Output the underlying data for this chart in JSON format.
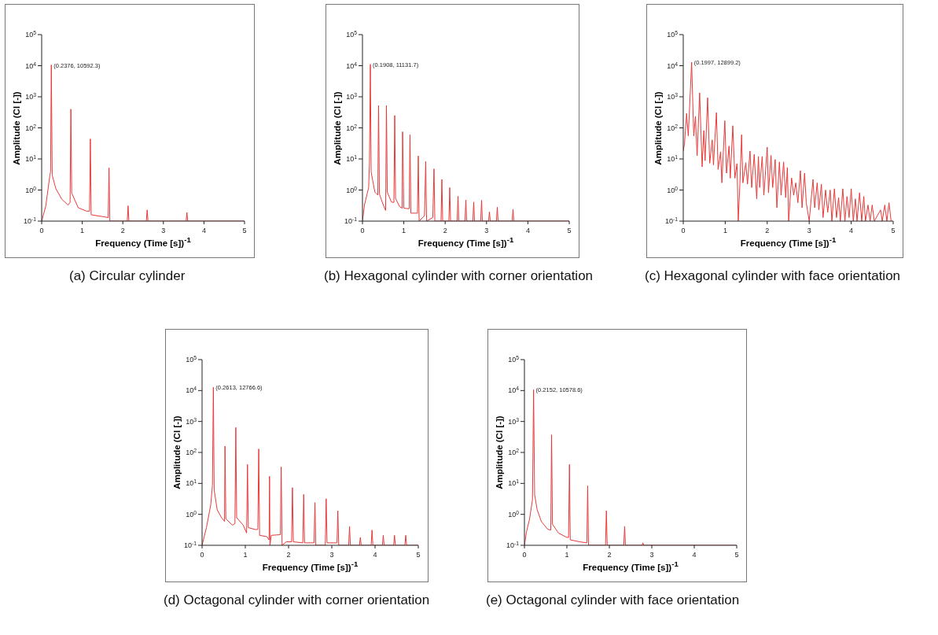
{
  "chart_data": [
    {
      "type": "line",
      "title": "(a) Circular cylinder",
      "xlabel": "Frequency (Time [s])$^{-1}$",
      "ylabel": "Amplitude (Cl [-])",
      "log": "y",
      "marker": "none",
      "line_style": "solid",
      "color": "#e63a3a",
      "xlim": [
        0,
        5
      ],
      "xticks": [
        0,
        1,
        2,
        3,
        4,
        5
      ],
      "ylim": [
        0.1,
        100000
      ],
      "yticks": [
        {
          "value": 0.1,
          "label": "10$^{-1}$"
        },
        {
          "value": 1,
          "label": "10$^{0}$"
        },
        {
          "value": 10,
          "label": "10$^{1}$"
        },
        {
          "value": 100,
          "label": "10$^{2}$"
        },
        {
          "value": 1000,
          "label": "10$^{3}$"
        },
        {
          "value": 10000,
          "label": "10$^{4}$"
        },
        {
          "value": 100000,
          "label": "10$^{5}$"
        }
      ],
      "annotations": [
        {
          "text": "(0.2376, 10592.3)",
          "x": 0.2376,
          "y": 10592.3
        }
      ],
      "x": [
        0,
        0.1,
        0.2,
        0.22,
        0.2376,
        0.26,
        0.35,
        0.5,
        0.65,
        0.7,
        0.72,
        0.74,
        0.9,
        1.1,
        1.18,
        1.2,
        1.22,
        1.5,
        1.64,
        1.66,
        1.68,
        2.11,
        2.13,
        2.15,
        2.58,
        2.6,
        2.62,
        3.56,
        3.58,
        3.6,
        5
      ],
      "values": [
        0.1,
        0.3,
        2.8,
        4,
        10592.3,
        3,
        1.1,
        0.5,
        0.33,
        0.4,
        400,
        0.8,
        0.27,
        0.21,
        0.21,
        44,
        0.16,
        0.14,
        0.13,
        5.2,
        0.1,
        0.1,
        0.31,
        0.1,
        0.1,
        0.23,
        0.1,
        0.1,
        0.19,
        0.1,
        0.1
      ]
    },
    {
      "type": "line",
      "title": "(b) Hexagonal cylinder with corner orientation",
      "xlabel": "Frequency (Time [s])$^{-1}$",
      "ylabel": "Amplitude (Cl [-])",
      "log": "y",
      "marker": "none",
      "line_style": "solid",
      "color": "#e63a3a",
      "xlim": [
        0,
        5
      ],
      "xticks": [
        0,
        1,
        2,
        3,
        4,
        5
      ],
      "ylim": [
        0.1,
        100000
      ],
      "yticks": [
        {
          "value": 0.1,
          "label": "10$^{-1}$"
        },
        {
          "value": 1,
          "label": "10$^{0}$"
        },
        {
          "value": 10,
          "label": "10$^{1}$"
        },
        {
          "value": 100,
          "label": "10$^{2}$"
        },
        {
          "value": 1000,
          "label": "10$^{3}$"
        },
        {
          "value": 10000,
          "label": "10$^{4}$"
        },
        {
          "value": 100000,
          "label": "10$^{5}$"
        }
      ],
      "annotations": [
        {
          "text": "(0.1908, 11131.7)",
          "x": 0.1908,
          "y": 11131.7
        }
      ],
      "x": [
        0,
        0.05,
        0.15,
        0.17,
        0.1908,
        0.21,
        0.3,
        0.37,
        0.39,
        0.41,
        0.5,
        0.56,
        0.58,
        0.6,
        0.7,
        0.76,
        0.78,
        0.8,
        0.9,
        0.96,
        0.97,
        1.0,
        1.13,
        1.15,
        1.17,
        1.33,
        1.35,
        1.37,
        1.5,
        1.53,
        1.55,
        1.7,
        1.73,
        1.75,
        1.9,
        1.92,
        1.94,
        2.09,
        2.11,
        2.13,
        2.29,
        2.31,
        2.33,
        2.48,
        2.5,
        2.52,
        2.67,
        2.69,
        2.71,
        2.86,
        2.88,
        2.9,
        3.05,
        3.07,
        3.09,
        3.24,
        3.26,
        3.28,
        3.62,
        3.64,
        3.66,
        5
      ],
      "values": [
        0.1,
        0.34,
        1.2,
        8,
        11131.7,
        3.8,
        0.86,
        0.69,
        525,
        0.74,
        0.34,
        0.22,
        525,
        0.86,
        0.41,
        0.4,
        250,
        0.54,
        0.29,
        0.26,
        75,
        0.26,
        0.25,
        60,
        0.18,
        0.18,
        12.5,
        0.1,
        0.15,
        8.3,
        0.1,
        0.13,
        4.8,
        0.1,
        0.1,
        2.2,
        0.1,
        0.1,
        1.2,
        0.1,
        0.1,
        0.63,
        0.1,
        0.1,
        0.48,
        0.1,
        0.1,
        0.41,
        0.1,
        0.1,
        0.47,
        0.1,
        0.1,
        0.2,
        0.1,
        0.1,
        0.28,
        0.1,
        0.1,
        0.24,
        0.1,
        0.1
      ]
    },
    {
      "type": "line",
      "title": "(c) Hexagonal cylinder with face orientation",
      "xlabel": "Frequency (Time [s])$^{-1}$",
      "ylabel": "Amplitude (Cl [-])",
      "log": "y",
      "marker": "none",
      "line_style": "solid",
      "color": "#e63a3a",
      "xlim": [
        0,
        5
      ],
      "xticks": [
        0,
        1,
        2,
        3,
        4,
        5
      ],
      "ylim": [
        0.1,
        100000
      ],
      "yticks": [
        {
          "value": 0.1,
          "label": "10$^{-1}$"
        },
        {
          "value": 1,
          "label": "10$^{0}$"
        },
        {
          "value": 10,
          "label": "10$^{1}$"
        },
        {
          "value": 100,
          "label": "10$^{2}$"
        },
        {
          "value": 1000,
          "label": "10$^{3}$"
        },
        {
          "value": 10000,
          "label": "10$^{4}$"
        },
        {
          "value": 100000,
          "label": "10$^{5}$"
        }
      ],
      "annotations": [
        {
          "text": "(0.1997, 12899.2)",
          "x": 0.1997,
          "y": 12899.2
        }
      ],
      "x": [
        0,
        0.03,
        0.08,
        0.12,
        0.1997,
        0.25,
        0.29,
        0.33,
        0.39,
        0.45,
        0.49,
        0.52,
        0.58,
        0.63,
        0.69,
        0.72,
        0.79,
        0.83,
        0.89,
        0.92,
        0.99,
        1.03,
        1.09,
        1.12,
        1.18,
        1.23,
        1.28,
        1.31,
        1.35,
        1.39,
        1.42,
        1.49,
        1.53,
        1.59,
        1.63,
        1.69,
        1.75,
        1.79,
        1.82,
        1.88,
        1.92,
        2.0,
        2.03,
        2.09,
        2.13,
        2.19,
        2.23,
        2.29,
        2.33,
        2.39,
        2.44,
        2.48,
        2.51,
        2.58,
        2.63,
        2.68,
        2.73,
        2.79,
        2.83,
        2.89,
        2.93,
        3.0,
        3.09,
        3.13,
        3.19,
        3.23,
        3.29,
        3.33,
        3.39,
        3.44,
        3.5,
        3.54,
        3.6,
        3.65,
        3.7,
        3.74,
        3.8,
        3.85,
        3.9,
        3.95,
        4.0,
        4.05,
        4.1,
        4.14,
        4.2,
        4.25,
        4.3,
        4.34,
        4.4,
        4.45,
        4.5,
        4.55,
        4.7,
        4.74,
        4.8,
        4.85,
        4.9,
        4.95
      ],
      "values": [
        18,
        31,
        295,
        55,
        12899.2,
        55,
        235,
        12.6,
        1340,
        5.6,
        82,
        8.8,
        930,
        7.3,
        41,
        6.4,
        310,
        4.6,
        17,
        1.7,
        170,
        3.5,
        26,
        2.4,
        117,
        2.4,
        7.1,
        0.1,
        1.7,
        60,
        1.7,
        7.6,
        1.55,
        18,
        1.2,
        14,
        0.52,
        12,
        1.2,
        12,
        0.68,
        24,
        0.82,
        13,
        1.2,
        9.6,
        0.27,
        8,
        0.68,
        8,
        0.57,
        5.3,
        0.1,
        2.45,
        0.68,
        1.7,
        0.39,
        4.2,
        0.27,
        3.5,
        0.39,
        0.1,
        2.2,
        0.27,
        1.7,
        0.23,
        1.55,
        0.13,
        1,
        0.19,
        1,
        0.1,
        1.1,
        0.13,
        0.57,
        0.1,
        1.1,
        0.1,
        0.62,
        0.13,
        1.1,
        0.1,
        0.52,
        0.1,
        0.82,
        0.1,
        0.62,
        0.1,
        0.33,
        0.1,
        0.33,
        0.1,
        0.23,
        0.1,
        0.33,
        0.1,
        0.39,
        0.1
      ]
    },
    {
      "type": "line",
      "title": "(d) Octagonal cylinder with corner orientation",
      "xlabel": "Frequency (Time [s])$^{-1}$",
      "ylabel": "Amplitude (Cl [-])",
      "log": "y",
      "marker": "none",
      "line_style": "solid",
      "color": "#e63a3a",
      "xlim": [
        0,
        5
      ],
      "xticks": [
        0,
        1,
        2,
        3,
        4,
        5
      ],
      "ylim": [
        0.1,
        100000
      ],
      "yticks": [
        {
          "value": 0.1,
          "label": "10$^{-1}$"
        },
        {
          "value": 1,
          "label": "10$^{0}$"
        },
        {
          "value": 10,
          "label": "10$^{1}$"
        },
        {
          "value": 100,
          "label": "10$^{2}$"
        },
        {
          "value": 1000,
          "label": "10$^{3}$"
        },
        {
          "value": 10000,
          "label": "10$^{4}$"
        },
        {
          "value": 100000,
          "label": "10$^{5}$"
        }
      ],
      "annotations": [
        {
          "text": "(0.2613, 12766.6)",
          "x": 0.2613,
          "y": 12766.6
        }
      ],
      "x": [
        0,
        0.1,
        0.2,
        0.24,
        0.2613,
        0.28,
        0.35,
        0.45,
        0.52,
        0.53,
        0.55,
        0.7,
        0.76,
        0.78,
        0.8,
        0.95,
        1.03,
        1.05,
        1.07,
        1.25,
        1.29,
        1.31,
        1.33,
        1.5,
        1.55,
        1.56,
        1.57,
        1.6,
        1.81,
        1.83,
        1.85,
        1.95,
        2.07,
        2.09,
        2.11,
        2.33,
        2.35,
        2.37,
        2.59,
        2.61,
        2.63,
        2.85,
        2.87,
        2.89,
        3.12,
        3.14,
        3.16,
        3.39,
        3.41,
        3.43,
        3.64,
        3.66,
        3.68,
        3.91,
        3.93,
        3.95,
        4.17,
        4.19,
        4.21,
        4.43,
        4.45,
        4.47,
        4.69,
        4.71,
        4.73,
        5
      ],
      "values": [
        0.1,
        0.37,
        2,
        8.8,
        12766.6,
        6,
        1.4,
        0.78,
        0.59,
        160,
        0.72,
        0.45,
        0.5,
        640,
        0.78,
        0.45,
        0.25,
        41,
        0.37,
        0.32,
        0.33,
        130,
        0.21,
        0.19,
        0.15,
        17,
        0.1,
        0.21,
        0.22,
        34,
        0.1,
        0.13,
        0.13,
        7.3,
        0.13,
        0.12,
        4.4,
        0.12,
        0.12,
        2.4,
        0.1,
        0.1,
        3.2,
        0.12,
        0.12,
        1.3,
        0.1,
        0.1,
        0.41,
        0.1,
        0.1,
        0.18,
        0.1,
        0.1,
        0.31,
        0.1,
        0.1,
        0.21,
        0.1,
        0.1,
        0.21,
        0.1,
        0.1,
        0.21,
        0.1,
        0.1
      ]
    },
    {
      "type": "line",
      "title": "(e) Octagonal cylinder with face orientation",
      "xlabel": "Frequency (Time [s])$^{-1}$",
      "ylabel": "Amplitude (Cl [-])",
      "log": "y",
      "marker": "none",
      "line_style": "solid",
      "color": "#e63a3a",
      "xlim": [
        0,
        5
      ],
      "xticks": [
        0,
        1,
        2,
        3,
        4,
        5
      ],
      "ylim": [
        0.1,
        100000
      ],
      "yticks": [
        {
          "value": 0.1,
          "label": "10$^{-1}$"
        },
        {
          "value": 1,
          "label": "10$^{0}$"
        },
        {
          "value": 10,
          "label": "10$^{1}$"
        },
        {
          "value": 100,
          "label": "10$^{2}$"
        },
        {
          "value": 1000,
          "label": "10$^{3}$"
        },
        {
          "value": 10000,
          "label": "10$^{4}$"
        },
        {
          "value": 100000,
          "label": "10$^{5}$"
        }
      ],
      "annotations": [
        {
          "text": "(0.2152, 10578.6)",
          "x": 0.2152,
          "y": 10578.6
        }
      ],
      "x": [
        0,
        0.05,
        0.12,
        0.19,
        0.2152,
        0.24,
        0.3,
        0.4,
        0.55,
        0.62,
        0.64,
        0.66,
        0.8,
        1.0,
        1.04,
        1.06,
        1.08,
        1.3,
        1.47,
        1.49,
        1.51,
        1.91,
        1.93,
        1.95,
        2.34,
        2.36,
        2.38,
        2.77,
        2.79,
        2.81,
        5
      ],
      "values": [
        0.1,
        0.28,
        0.69,
        3,
        10578.6,
        4.3,
        1.4,
        0.58,
        0.33,
        0.31,
        370,
        0.48,
        0.25,
        0.18,
        0.18,
        41,
        0.15,
        0.13,
        0.12,
        8.3,
        0.1,
        0.1,
        1.3,
        0.1,
        0.1,
        0.41,
        0.1,
        0.1,
        0.12,
        0.1,
        0.1
      ]
    }
  ]
}
